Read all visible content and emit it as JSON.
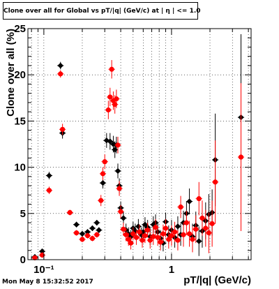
{
  "title": "Clone  over all for Global vs pT/|q| (GeV/c) at | η | <= 1.0",
  "timestamp": "Mon May  8 15:32:52 2017",
  "colors": {
    "series1": "#000000",
    "series2": "#ff0000",
    "grid": "#000000",
    "frame": "#000000"
  },
  "chart_data": {
    "type": "scatter",
    "title": "Clone  over all for Global vs pT/|q| (GeV/c) at | η | <= 1.0",
    "xlabel": "pT/|q| (GeV/c)",
    "ylabel": "Clone  over all (%)",
    "xscale": "log",
    "xlim": [
      0.075,
      4.2
    ],
    "ylim": [
      0,
      25
    ],
    "grid": true,
    "x_tick_labels": [
      {
        "value": 0.1,
        "label": "10⁻¹"
      },
      {
        "value": 1,
        "label": "1"
      }
    ],
    "y_ticks": [
      0,
      5,
      10,
      15,
      20,
      25
    ],
    "series": [
      {
        "color": "black",
        "marker": "diamond",
        "points": [
          [
            0.085,
            0.3,
            0.3
          ],
          [
            0.097,
            0.9,
            0.3
          ],
          [
            0.11,
            9.1,
            0.4
          ],
          [
            0.135,
            21.0,
            0.4
          ],
          [
            0.14,
            13.7,
            0.6
          ],
          [
            0.18,
            3.8,
            0.3
          ],
          [
            0.2,
            2.8,
            0.3
          ],
          [
            0.22,
            3.0,
            0.3
          ],
          [
            0.24,
            3.4,
            0.3
          ],
          [
            0.26,
            4.0,
            0.3
          ],
          [
            0.27,
            3.2,
            0.3
          ],
          [
            0.29,
            8.3,
            0.6
          ],
          [
            0.31,
            12.9,
            0.8
          ],
          [
            0.33,
            12.8,
            0.9
          ],
          [
            0.35,
            12.5,
            0.9
          ],
          [
            0.36,
            11.9,
            0.9
          ],
          [
            0.37,
            12.4,
            0.9
          ],
          [
            0.38,
            9.6,
            0.8
          ],
          [
            0.39,
            8.0,
            0.8
          ],
          [
            0.4,
            5.6,
            0.7
          ],
          [
            0.42,
            4.5,
            0.7
          ],
          [
            0.44,
            3.2,
            0.7
          ],
          [
            0.46,
            2.8,
            0.7
          ],
          [
            0.48,
            2.5,
            0.7
          ],
          [
            0.5,
            3.4,
            0.7
          ],
          [
            0.52,
            3.1,
            0.8
          ],
          [
            0.55,
            3.6,
            0.8
          ],
          [
            0.58,
            2.7,
            0.8
          ],
          [
            0.6,
            3.0,
            0.8
          ],
          [
            0.62,
            3.8,
            0.8
          ],
          [
            0.65,
            3.5,
            0.8
          ],
          [
            0.68,
            2.5,
            0.9
          ],
          [
            0.72,
            3.8,
            0.9
          ],
          [
            0.75,
            4.0,
            0.9
          ],
          [
            0.78,
            3.0,
            0.9
          ],
          [
            0.82,
            2.3,
            0.9
          ],
          [
            0.86,
            1.8,
            0.9
          ],
          [
            0.9,
            4.1,
            1.0
          ],
          [
            0.95,
            2.7,
            1.0
          ],
          [
            1.0,
            3.2,
            1.1
          ],
          [
            1.06,
            2.4,
            1.1
          ],
          [
            1.12,
            3.6,
            1.1
          ],
          [
            1.18,
            2.7,
            1.2
          ],
          [
            1.24,
            4.0,
            1.3
          ],
          [
            1.31,
            5.0,
            1.3
          ],
          [
            1.38,
            6.3,
            1.4
          ],
          [
            1.46,
            2.5,
            1.4
          ],
          [
            1.55,
            3.7,
            1.5
          ],
          [
            1.64,
            2.0,
            1.6
          ],
          [
            1.74,
            3.1,
            1.8
          ],
          [
            1.85,
            4.2,
            2.0
          ],
          [
            1.96,
            4.9,
            2.2
          ],
          [
            2.08,
            5.1,
            2.5
          ],
          [
            2.2,
            10.8,
            5.0
          ],
          [
            3.5,
            15.4,
            9.0
          ]
        ]
      },
      {
        "color": "red",
        "marker": "circle",
        "points": [
          [
            0.085,
            0.2,
            0.2
          ],
          [
            0.097,
            0.5,
            0.3
          ],
          [
            0.11,
            7.5,
            0.4
          ],
          [
            0.135,
            20.1,
            0.4
          ],
          [
            0.14,
            14.1,
            0.6
          ],
          [
            0.16,
            5.1,
            0.3
          ],
          [
            0.18,
            2.9,
            0.3
          ],
          [
            0.2,
            2.2,
            0.3
          ],
          [
            0.22,
            2.6,
            0.3
          ],
          [
            0.24,
            2.3,
            0.3
          ],
          [
            0.26,
            2.7,
            0.3
          ],
          [
            0.28,
            6.4,
            0.6
          ],
          [
            0.29,
            9.3,
            0.7
          ],
          [
            0.3,
            10.6,
            0.8
          ],
          [
            0.32,
            16.2,
            1.0
          ],
          [
            0.33,
            17.6,
            1.0
          ],
          [
            0.34,
            20.6,
            1.0
          ],
          [
            0.35,
            17.2,
            1.0
          ],
          [
            0.36,
            16.8,
            1.0
          ],
          [
            0.37,
            17.4,
            1.0
          ],
          [
            0.38,
            12.4,
            0.9
          ],
          [
            0.39,
            7.7,
            0.8
          ],
          [
            0.4,
            5.2,
            0.7
          ],
          [
            0.42,
            3.3,
            0.7
          ],
          [
            0.44,
            2.7,
            0.7
          ],
          [
            0.46,
            2.2,
            0.7
          ],
          [
            0.48,
            1.8,
            0.7
          ],
          [
            0.5,
            2.8,
            0.7
          ],
          [
            0.53,
            2.4,
            0.8
          ],
          [
            0.56,
            3.0,
            0.8
          ],
          [
            0.59,
            2.1,
            0.8
          ],
          [
            0.62,
            2.6,
            0.8
          ],
          [
            0.65,
            3.2,
            0.8
          ],
          [
            0.68,
            2.1,
            0.9
          ],
          [
            0.72,
            2.5,
            0.9
          ],
          [
            0.75,
            3.5,
            0.9
          ],
          [
            0.78,
            2.4,
            0.9
          ],
          [
            0.82,
            1.9,
            0.9
          ],
          [
            0.86,
            2.8,
            1.0
          ],
          [
            0.9,
            3.4,
            1.0
          ],
          [
            0.95,
            2.2,
            1.0
          ],
          [
            1.0,
            2.6,
            1.1
          ],
          [
            1.06,
            3.0,
            1.1
          ],
          [
            1.12,
            2.1,
            1.1
          ],
          [
            1.18,
            5.7,
            1.2
          ],
          [
            1.24,
            2.7,
            1.3
          ],
          [
            1.31,
            4.0,
            1.3
          ],
          [
            1.38,
            2.8,
            1.4
          ],
          [
            1.46,
            2.2,
            1.4
          ],
          [
            1.55,
            3.3,
            1.5
          ],
          [
            1.64,
            6.6,
            1.8
          ],
          [
            1.74,
            4.5,
            1.9
          ],
          [
            1.85,
            3.4,
            2.0
          ],
          [
            1.96,
            2.9,
            2.2
          ],
          [
            2.08,
            3.9,
            2.5
          ],
          [
            2.2,
            8.4,
            4.5
          ],
          [
            3.5,
            11.1,
            8.0
          ]
        ]
      }
    ]
  }
}
